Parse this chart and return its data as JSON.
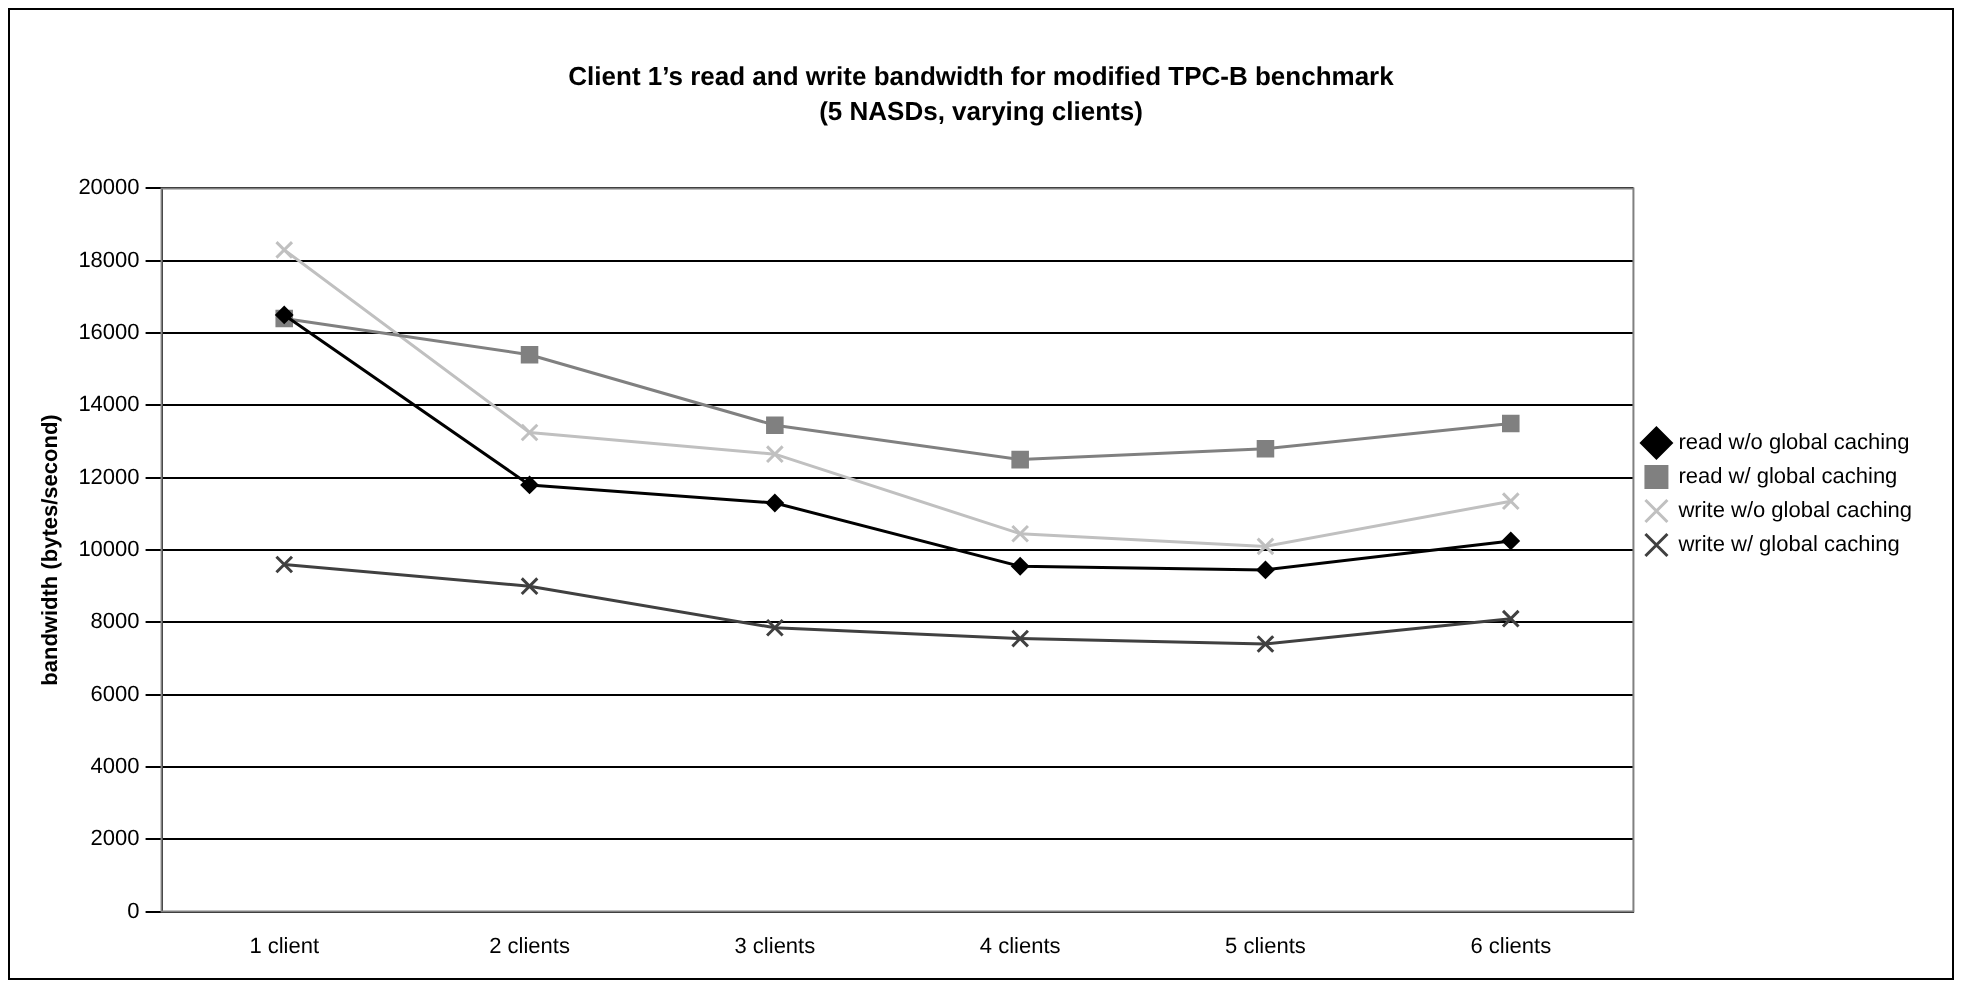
{
  "chart_data": {
    "type": "line",
    "title": "Client 1’s read and write bandwidth for modified TPC-B benchmark",
    "subtitle": "(5 NASDs, varying clients)",
    "ylabel": "bandwidth (bytes/second)",
    "categories": [
      "1 client",
      "2 clients",
      "3 clients",
      "4 clients",
      "5 clients",
      "6 clients"
    ],
    "ylim": [
      0,
      20000
    ],
    "yticks": [
      0,
      2000,
      4000,
      6000,
      8000,
      10000,
      12000,
      14000,
      16000,
      18000,
      20000
    ],
    "grid": "y",
    "legend": "right",
    "line_style": "solid",
    "series": [
      {
        "name": "read w/o global caching",
        "color": "#000000",
        "marker": "diamond",
        "values": [
          16500,
          11800,
          11300,
          9550,
          9450,
          10250
        ]
      },
      {
        "name": "read w/ global caching",
        "color": "#808080",
        "marker": "square",
        "values": [
          16400,
          15400,
          13450,
          12500,
          12800,
          13500
        ]
      },
      {
        "name": "write w/o global caching",
        "color": "#c0c0c0",
        "marker": "cross",
        "values": [
          18300,
          13250,
          12650,
          10450,
          10100,
          11350
        ]
      },
      {
        "name": "write w/ global caching",
        "color": "#404040",
        "marker": "cross",
        "values": [
          9600,
          9000,
          7850,
          7550,
          7400,
          8100
        ]
      }
    ]
  }
}
